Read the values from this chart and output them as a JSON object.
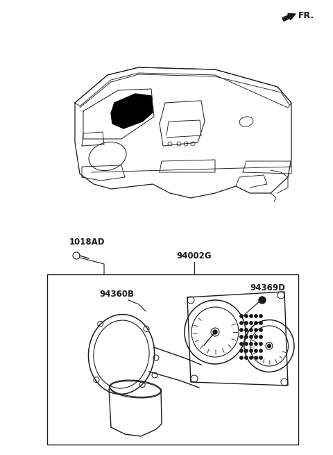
{
  "bg_color": "#ffffff",
  "line_color": "#1a1a1a",
  "label_1018AD": "1018AD",
  "label_94002G": "94002G",
  "label_94360B": "94360B",
  "label_94369D": "94369D",
  "label_FR": "FR.",
  "figsize": [
    4.8,
    6.55
  ],
  "dpi": 100
}
